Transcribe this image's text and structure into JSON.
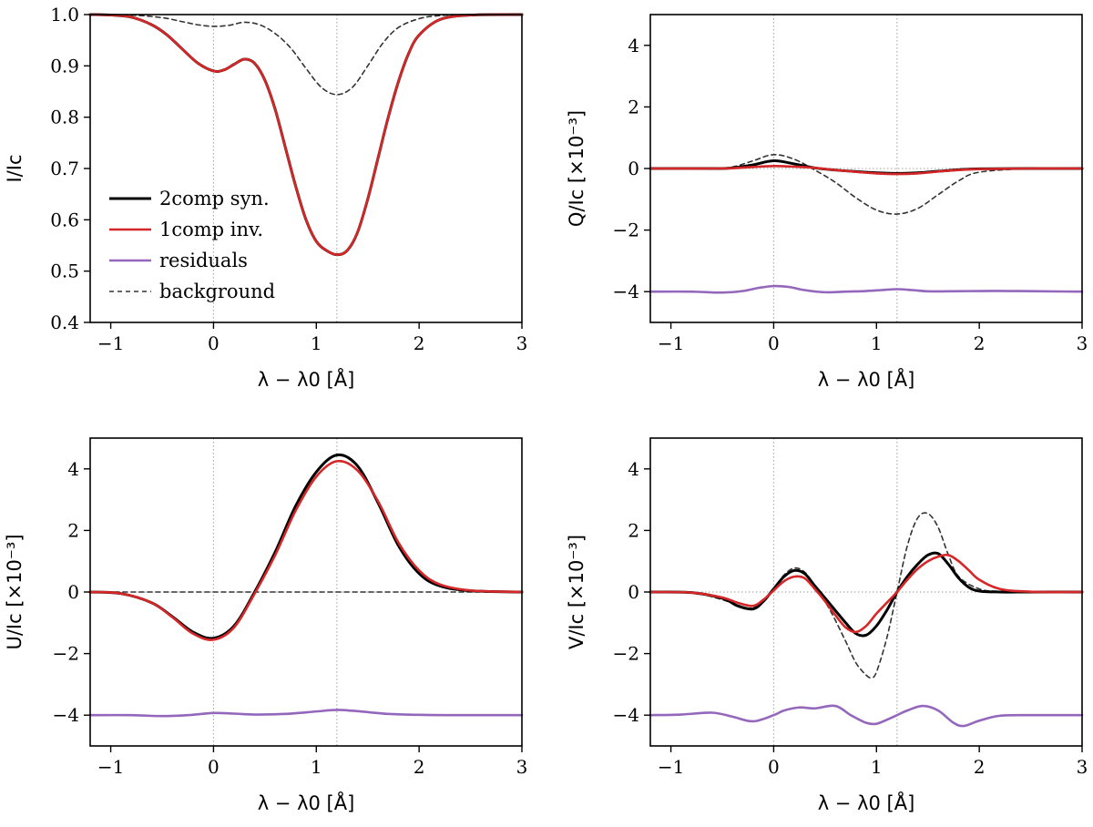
{
  "colors": {
    "syn": "#000000",
    "inv": "#d62728",
    "residuals": "#9467bd",
    "background": "#333333",
    "guide": "#a0a0a0"
  },
  "legend": [
    "2comp syn.",
    "1comp inv.",
    "residuals",
    "background"
  ],
  "chart_data": [
    {
      "type": "line",
      "panel": "I",
      "xlabel": "λ − λ0 [Å]",
      "ylabel": "I/Ic",
      "xlim": [
        -1.2,
        3
      ],
      "ylim": [
        0.4,
        1.0
      ],
      "xticks": [
        -1,
        0,
        1,
        2,
        3
      ],
      "xtick_labels": [
        "−1",
        "0",
        "1",
        "2",
        "3"
      ],
      "yticks": [
        0.4,
        0.5,
        0.6,
        0.7,
        0.8,
        0.9,
        1.0
      ],
      "ytick_labels": [
        "0.4",
        "0.5",
        "0.6",
        "0.7",
        "0.8",
        "0.9",
        "1.0"
      ],
      "guides_x": [
        0,
        1.2
      ],
      "guides_y": [],
      "legend_position": "lower-left",
      "series": [
        {
          "name": "background",
          "x": [
            -1.2,
            -0.8,
            -0.5,
            -0.3,
            -0.15,
            0,
            0.15,
            0.3,
            0.45,
            0.6,
            0.75,
            0.9,
            1.05,
            1.2,
            1.35,
            1.5,
            1.65,
            1.8,
            2.0,
            2.2,
            2.5,
            3.0
          ],
          "y": [
            1.0,
            0.999,
            0.994,
            0.986,
            0.98,
            0.977,
            0.979,
            0.985,
            0.98,
            0.963,
            0.935,
            0.895,
            0.858,
            0.844,
            0.858,
            0.9,
            0.945,
            0.975,
            0.992,
            0.998,
            1.0,
            1.0
          ]
        },
        {
          "name": "2comp syn.",
          "x": [
            -1.2,
            -1.0,
            -0.8,
            -0.6,
            -0.45,
            -0.3,
            -0.15,
            0,
            0.1,
            0.2,
            0.3,
            0.4,
            0.5,
            0.6,
            0.7,
            0.8,
            0.9,
            1.0,
            1.1,
            1.2,
            1.3,
            1.4,
            1.5,
            1.6,
            1.7,
            1.8,
            1.9,
            2.0,
            2.2,
            2.5,
            3.0
          ],
          "y": [
            1.0,
            0.999,
            0.995,
            0.98,
            0.96,
            0.932,
            0.905,
            0.89,
            0.892,
            0.903,
            0.913,
            0.905,
            0.872,
            0.815,
            0.74,
            0.665,
            0.6,
            0.558,
            0.54,
            0.532,
            0.54,
            0.575,
            0.64,
            0.72,
            0.8,
            0.87,
            0.925,
            0.96,
            0.99,
            0.999,
            1.0
          ]
        },
        {
          "name": "1comp inv.",
          "x": [
            -1.2,
            -1.0,
            -0.8,
            -0.6,
            -0.45,
            -0.3,
            -0.15,
            0,
            0.1,
            0.2,
            0.3,
            0.4,
            0.5,
            0.6,
            0.7,
            0.8,
            0.9,
            1.0,
            1.1,
            1.2,
            1.3,
            1.4,
            1.5,
            1.6,
            1.7,
            1.8,
            1.9,
            2.0,
            2.2,
            2.5,
            3.0
          ],
          "y": [
            1.0,
            0.999,
            0.995,
            0.98,
            0.96,
            0.932,
            0.905,
            0.89,
            0.892,
            0.903,
            0.913,
            0.905,
            0.872,
            0.815,
            0.74,
            0.665,
            0.6,
            0.558,
            0.54,
            0.532,
            0.54,
            0.575,
            0.64,
            0.72,
            0.8,
            0.87,
            0.925,
            0.96,
            0.99,
            0.999,
            1.0
          ]
        }
      ]
    },
    {
      "type": "line",
      "panel": "Q",
      "xlabel": "λ − λ0 [Å]",
      "ylabel": "Q/Ic [×10⁻³]",
      "xlim": [
        -1.2,
        3
      ],
      "ylim": [
        -5,
        5
      ],
      "xticks": [
        -1,
        0,
        1,
        2,
        3
      ],
      "xtick_labels": [
        "−1",
        "0",
        "1",
        "2",
        "3"
      ],
      "yticks": [
        -4,
        -2,
        0,
        2,
        4
      ],
      "ytick_labels": [
        "−4",
        "−2",
        "0",
        "2",
        "4"
      ],
      "guides_x": [
        0,
        1.2
      ],
      "guides_y": [
        0
      ],
      "series": [
        {
          "name": "background",
          "x": [
            -1.2,
            -0.6,
            -0.4,
            -0.2,
            0,
            0.2,
            0.4,
            0.6,
            0.8,
            1.0,
            1.2,
            1.4,
            1.6,
            1.8,
            2.0,
            2.5,
            3.0
          ],
          "y": [
            0,
            0,
            0.05,
            0.25,
            0.45,
            0.3,
            -0.05,
            -0.45,
            -0.95,
            -1.35,
            -1.48,
            -1.3,
            -0.85,
            -0.4,
            -0.12,
            0,
            0
          ]
        },
        {
          "name": "2comp syn.",
          "x": [
            -1.2,
            -0.6,
            -0.4,
            -0.2,
            0,
            0.2,
            0.4,
            0.6,
            0.8,
            1.0,
            1.2,
            1.4,
            1.6,
            1.8,
            2.0,
            2.5,
            3.0
          ],
          "y": [
            0,
            0,
            0.02,
            0.12,
            0.25,
            0.15,
            0.02,
            -0.05,
            -0.1,
            -0.14,
            -0.16,
            -0.14,
            -0.09,
            -0.04,
            -0.01,
            0,
            0
          ]
        },
        {
          "name": "1comp inv.",
          "x": [
            -1.2,
            -0.6,
            -0.4,
            -0.2,
            0,
            0.2,
            0.4,
            0.6,
            0.8,
            1.0,
            1.2,
            1.4,
            1.6,
            1.8,
            2.0,
            2.5,
            3.0
          ],
          "y": [
            0,
            0,
            0.01,
            0.05,
            0.08,
            0.06,
            0.02,
            -0.05,
            -0.11,
            -0.16,
            -0.18,
            -0.16,
            -0.1,
            -0.05,
            -0.02,
            0,
            0
          ]
        },
        {
          "name": "residuals",
          "x": [
            -1.2,
            -0.8,
            -0.5,
            -0.3,
            -0.15,
            0,
            0.15,
            0.3,
            0.5,
            0.7,
            0.9,
            1.05,
            1.2,
            1.35,
            1.5,
            1.7,
            2.0,
            2.3,
            2.6,
            3.0
          ],
          "y": [
            -4.0,
            -4.0,
            -4.03,
            -3.98,
            -3.88,
            -3.82,
            -3.85,
            -3.95,
            -4.02,
            -4.0,
            -3.98,
            -3.95,
            -3.92,
            -3.95,
            -3.99,
            -3.99,
            -3.98,
            -3.98,
            -3.99,
            -4.0
          ]
        }
      ]
    },
    {
      "type": "line",
      "panel": "U",
      "xlabel": "λ − λ0 [Å]",
      "ylabel": "U/Ic [×10⁻³]",
      "xlim": [
        -1.2,
        3
      ],
      "ylim": [
        -5,
        5
      ],
      "xticks": [
        -1,
        0,
        1,
        2,
        3
      ],
      "xtick_labels": [
        "−1",
        "0",
        "1",
        "2",
        "3"
      ],
      "yticks": [
        -4,
        -2,
        0,
        2,
        4
      ],
      "ytick_labels": [
        "−4",
        "−2",
        "0",
        "2",
        "4"
      ],
      "guides_x": [
        0,
        1.2
      ],
      "guides_y": [
        0
      ],
      "series": [
        {
          "name": "background",
          "x": [
            -1.2,
            3.0
          ],
          "y": [
            0,
            0
          ]
        },
        {
          "name": "2comp syn.",
          "x": [
            -1.2,
            -0.9,
            -0.6,
            -0.4,
            -0.2,
            0,
            0.2,
            0.4,
            0.6,
            0.8,
            1.0,
            1.2,
            1.4,
            1.6,
            1.8,
            2.0,
            2.2,
            2.5,
            3.0
          ],
          "y": [
            0,
            -0.05,
            -0.35,
            -0.8,
            -1.3,
            -1.5,
            -1.1,
            0.0,
            1.3,
            2.8,
            3.9,
            4.45,
            4.1,
            2.9,
            1.5,
            0.6,
            0.2,
            0.04,
            0
          ]
        },
        {
          "name": "1comp inv.",
          "x": [
            -1.2,
            -0.9,
            -0.6,
            -0.4,
            -0.2,
            0,
            0.2,
            0.4,
            0.6,
            0.8,
            1.0,
            1.2,
            1.4,
            1.6,
            1.8,
            2.0,
            2.2,
            2.5,
            3.0
          ],
          "y": [
            0,
            -0.05,
            -0.35,
            -0.82,
            -1.35,
            -1.55,
            -1.15,
            -0.05,
            1.2,
            2.65,
            3.75,
            4.25,
            3.95,
            2.95,
            1.6,
            0.7,
            0.25,
            0.05,
            0
          ]
        },
        {
          "name": "residuals",
          "x": [
            -1.2,
            -0.8,
            -0.5,
            -0.25,
            0,
            0.2,
            0.4,
            0.7,
            1.0,
            1.2,
            1.4,
            1.7,
            2.0,
            2.3,
            2.6,
            3.0
          ],
          "y": [
            -4.0,
            -4.0,
            -4.03,
            -4.0,
            -3.93,
            -3.95,
            -3.98,
            -3.96,
            -3.88,
            -3.83,
            -3.87,
            -3.96,
            -3.99,
            -4.0,
            -4.0,
            -4.0
          ]
        }
      ]
    },
    {
      "type": "line",
      "panel": "V",
      "xlabel": "λ − λ0 [Å]",
      "ylabel": "V/Ic [×10⁻³]",
      "xlim": [
        -1.2,
        3
      ],
      "ylim": [
        -5,
        5
      ],
      "xticks": [
        -1,
        0,
        1,
        2,
        3
      ],
      "xtick_labels": [
        "−1",
        "0",
        "1",
        "2",
        "3"
      ],
      "yticks": [
        -4,
        -2,
        0,
        2,
        4
      ],
      "ytick_labels": [
        "−4",
        "−2",
        "0",
        "2",
        "4"
      ],
      "guides_x": [
        0,
        1.2
      ],
      "guides_y": [
        0
      ],
      "series": [
        {
          "name": "background",
          "x": [
            -1.2,
            -0.8,
            -0.5,
            -0.3,
            -0.2,
            -0.1,
            0,
            0.1,
            0.2,
            0.3,
            0.4,
            0.55,
            0.7,
            0.8,
            0.9,
            0.95,
            1.0,
            1.1,
            1.2,
            1.3,
            1.4,
            1.5,
            1.6,
            1.7,
            1.8,
            2.0,
            2.2,
            2.5,
            3.0
          ],
          "y": [
            0,
            -0.02,
            -0.25,
            -0.5,
            -0.5,
            -0.25,
            0.1,
            0.55,
            0.78,
            0.65,
            0.2,
            -0.6,
            -1.6,
            -2.3,
            -2.7,
            -2.78,
            -2.6,
            -1.5,
            0.0,
            1.5,
            2.4,
            2.55,
            2.1,
            1.2,
            0.5,
            0.1,
            0.02,
            0,
            0
          ]
        },
        {
          "name": "2comp syn.",
          "x": [
            -1.2,
            -0.8,
            -0.5,
            -0.35,
            -0.2,
            -0.1,
            0,
            0.1,
            0.2,
            0.3,
            0.4,
            0.5,
            0.6,
            0.7,
            0.8,
            0.9,
            1.0,
            1.1,
            1.2,
            1.3,
            1.4,
            1.5,
            1.6,
            1.7,
            1.8,
            1.9,
            2.0,
            2.2,
            2.5,
            3.0
          ],
          "y": [
            0,
            -0.02,
            -0.2,
            -0.45,
            -0.55,
            -0.3,
            0.1,
            0.5,
            0.7,
            0.6,
            0.2,
            -0.2,
            -0.6,
            -1.0,
            -1.35,
            -1.4,
            -1.1,
            -0.6,
            0.0,
            0.5,
            0.9,
            1.2,
            1.25,
            0.9,
            0.45,
            0.15,
            0.03,
            0,
            0,
            0
          ]
        },
        {
          "name": "1comp inv.",
          "x": [
            -1.2,
            -0.8,
            -0.5,
            -0.35,
            -0.2,
            -0.1,
            0,
            0.1,
            0.2,
            0.3,
            0.4,
            0.5,
            0.6,
            0.7,
            0.8,
            0.9,
            1.0,
            1.1,
            1.2,
            1.3,
            1.4,
            1.5,
            1.6,
            1.7,
            1.8,
            1.9,
            2.0,
            2.2,
            2.5,
            3.0
          ],
          "y": [
            0,
            -0.02,
            -0.18,
            -0.35,
            -0.45,
            -0.25,
            0.05,
            0.35,
            0.5,
            0.45,
            0.1,
            -0.3,
            -0.75,
            -1.15,
            -1.3,
            -1.1,
            -0.7,
            -0.35,
            0.0,
            0.4,
            0.75,
            1.0,
            1.15,
            1.2,
            1.0,
            0.7,
            0.4,
            0.1,
            0.01,
            0
          ]
        },
        {
          "name": "residuals",
          "x": [
            -1.2,
            -0.9,
            -0.6,
            -0.4,
            -0.2,
            0,
            0.1,
            0.25,
            0.4,
            0.6,
            0.75,
            0.9,
            1.0,
            1.1,
            1.2,
            1.3,
            1.45,
            1.6,
            1.75,
            1.85,
            2.0,
            2.2,
            2.5,
            3.0
          ],
          "y": [
            -4.0,
            -3.98,
            -3.92,
            -4.05,
            -4.2,
            -4.0,
            -3.85,
            -3.75,
            -3.78,
            -3.7,
            -4.0,
            -4.25,
            -4.28,
            -4.15,
            -4.0,
            -3.85,
            -3.7,
            -3.85,
            -4.25,
            -4.35,
            -4.18,
            -4.02,
            -4.0,
            -4.0
          ]
        }
      ]
    }
  ]
}
